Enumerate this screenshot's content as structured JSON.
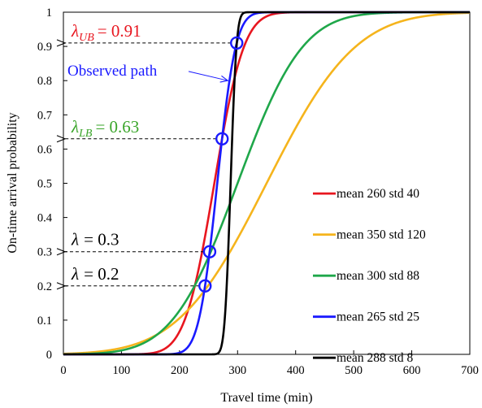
{
  "chart_data": {
    "type": "line",
    "xlabel": "Travel time (min)",
    "ylabel": "On-time arrival probability",
    "xlim": [
      0,
      700
    ],
    "ylim": [
      0,
      1
    ],
    "x_ticks": [
      "0",
      "100",
      "200",
      "300",
      "400",
      "500",
      "600",
      "700"
    ],
    "y_ticks": [
      "0",
      "0.1",
      "0.2",
      "0.3",
      "0.4",
      "0.5",
      "0.6",
      "0.7",
      "0.8",
      "0.9",
      "1"
    ],
    "grid": false,
    "legend_position": "lower-right",
    "series": [
      {
        "name": "mean 260 std 40",
        "mean": 260,
        "std": 40,
        "color": "#e8161f"
      },
      {
        "name": "mean 350 std 120",
        "mean": 350,
        "std": 120,
        "color": "#f5b41c"
      },
      {
        "name": "mean 300 std 88",
        "mean": 300,
        "std": 88,
        "color": "#1fa74a"
      },
      {
        "name": "mean 265 std 25",
        "mean": 265,
        "std": 25,
        "color": "#1a1aff"
      },
      {
        "name": "mean 288 std 8",
        "mean": 288,
        "std": 8,
        "color": "#000000"
      }
    ],
    "annotations": [
      {
        "symbol": "λ",
        "sub": "UB",
        "text": "= 0.91",
        "value": 0.91,
        "color": "#e8161f"
      },
      {
        "symbol": "λ",
        "sub": "LB",
        "text": "= 0.63",
        "value": 0.63,
        "color": "#3aa52a"
      },
      {
        "symbol": "λ",
        "sub": "",
        "text": "= 0.3",
        "value": 0.3,
        "color": "#000000"
      },
      {
        "symbol": "λ",
        "sub": "",
        "text": "= 0.2",
        "value": 0.2,
        "color": "#000000"
      }
    ],
    "observed_path_label": "Observed path",
    "observed_path_color": "#1a1aff",
    "observed_path_series": 3
  }
}
